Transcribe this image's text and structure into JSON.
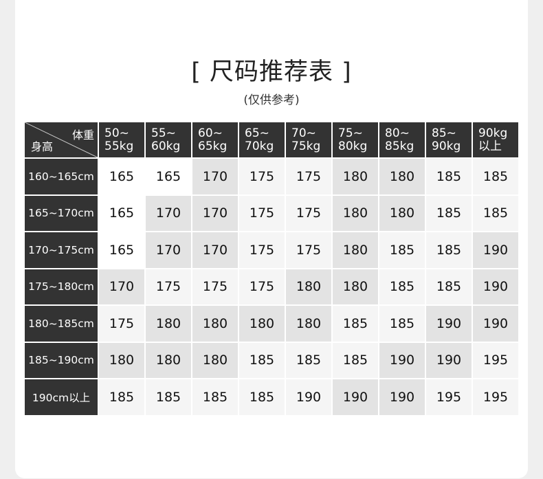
{
  "title": "[ 尺码推荐表 ]",
  "subtitle": "(仅供参考)",
  "colors": {
    "header_bg": "#333333",
    "cell_white": "#ffffff",
    "cell_light": "#f5f5f5",
    "cell_medium": "#e3e3e3"
  },
  "table": {
    "corner_weight_label": "体重",
    "corner_height_label": "身高",
    "columns": [
      [
        "50~",
        "55kg"
      ],
      [
        "55~",
        "60kg"
      ],
      [
        "60~",
        "65kg"
      ],
      [
        "65~",
        "70kg"
      ],
      [
        "70~",
        "75kg"
      ],
      [
        "75~",
        "80kg"
      ],
      [
        "80~",
        "85kg"
      ],
      [
        "85~",
        "90kg"
      ],
      [
        "90kg",
        "以上"
      ]
    ],
    "rows": [
      {
        "height": "160~165cm",
        "sizes": [
          "165",
          "165",
          "170",
          "175",
          "175",
          "180",
          "180",
          "185",
          "185"
        ],
        "shade": [
          "w",
          "w",
          "m",
          "l",
          "l",
          "m",
          "m",
          "l",
          "l"
        ]
      },
      {
        "height": "165~170cm",
        "sizes": [
          "165",
          "170",
          "170",
          "175",
          "175",
          "180",
          "180",
          "185",
          "185"
        ],
        "shade": [
          "w",
          "m",
          "m",
          "l",
          "l",
          "m",
          "m",
          "l",
          "l"
        ]
      },
      {
        "height": "170~175cm",
        "sizes": [
          "165",
          "170",
          "170",
          "175",
          "175",
          "180",
          "185",
          "185",
          "190"
        ],
        "shade": [
          "w",
          "m",
          "m",
          "l",
          "l",
          "m",
          "l",
          "l",
          "m"
        ]
      },
      {
        "height": "175~180cm",
        "sizes": [
          "170",
          "175",
          "175",
          "175",
          "180",
          "180",
          "185",
          "185",
          "190"
        ],
        "shade": [
          "m",
          "l",
          "l",
          "l",
          "m",
          "m",
          "l",
          "l",
          "m"
        ]
      },
      {
        "height": "180~185cm",
        "sizes": [
          "175",
          "180",
          "180",
          "180",
          "180",
          "185",
          "185",
          "190",
          "190"
        ],
        "shade": [
          "l",
          "m",
          "m",
          "m",
          "m",
          "l",
          "l",
          "m",
          "m"
        ]
      },
      {
        "height": "185~190cm",
        "sizes": [
          "180",
          "180",
          "180",
          "185",
          "185",
          "185",
          "190",
          "190",
          "195"
        ],
        "shade": [
          "m",
          "m",
          "m",
          "l",
          "l",
          "l",
          "m",
          "m",
          "l"
        ]
      },
      {
        "height": "190cm以上",
        "sizes": [
          "185",
          "185",
          "185",
          "185",
          "190",
          "190",
          "190",
          "195",
          "195"
        ],
        "shade": [
          "l",
          "l",
          "l",
          "l",
          "l",
          "m",
          "m",
          "l",
          "l"
        ]
      }
    ]
  }
}
